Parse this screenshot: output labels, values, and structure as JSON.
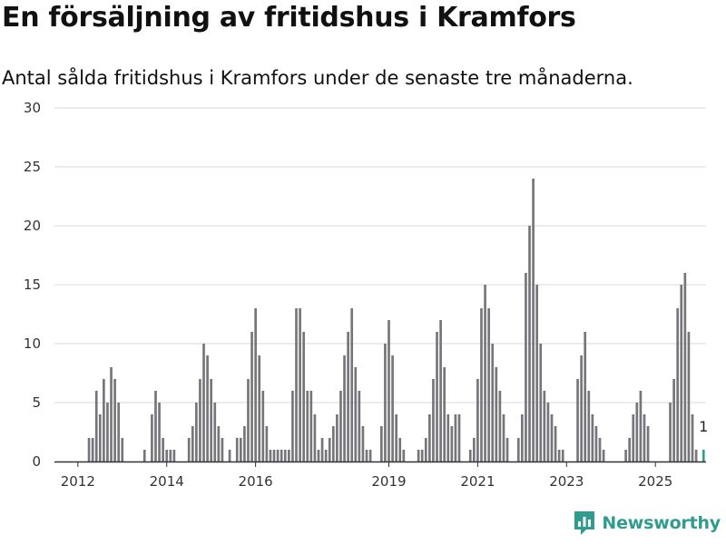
{
  "title": "En försäljning av fritidshus i Kramfors",
  "subtitle": "Antal sålda fritidshus i Kramfors under de senaste tre månaderna.",
  "brand": {
    "name": "Newsworthy",
    "logo_icon": "newsworthy-chart-icon"
  },
  "colors": {
    "bar": "#76767a",
    "highlight": "#2f9c8f",
    "grid": "#d9d9d9",
    "axis": "#333333"
  },
  "chart_data": {
    "type": "bar",
    "title": "",
    "xlabel": "",
    "ylabel": "",
    "ylim": [
      0,
      30
    ],
    "yticks": [
      0,
      5,
      10,
      15,
      20,
      25,
      30
    ],
    "xticks": [
      "2012",
      "2014",
      "2016",
      "2019",
      "2021",
      "2023",
      "2025"
    ],
    "grid": true,
    "start_month": "2011-07",
    "values": [
      0,
      0,
      0,
      0,
      0,
      0,
      0,
      0,
      0,
      2,
      2,
      6,
      4,
      7,
      5,
      8,
      7,
      5,
      2,
      0,
      0,
      0,
      0,
      0,
      1,
      0,
      4,
      6,
      5,
      2,
      1,
      1,
      1,
      0,
      0,
      0,
      2,
      3,
      5,
      7,
      10,
      9,
      7,
      5,
      3,
      2,
      0,
      1,
      0,
      2,
      2,
      3,
      7,
      11,
      13,
      9,
      6,
      3,
      1,
      1,
      1,
      1,
      1,
      1,
      6,
      13,
      13,
      11,
      6,
      6,
      4,
      1,
      2,
      1,
      2,
      3,
      4,
      6,
      9,
      11,
      13,
      8,
      6,
      3,
      1,
      1,
      0,
      0,
      3,
      10,
      12,
      9,
      4,
      2,
      1,
      0,
      0,
      0,
      1,
      1,
      2,
      4,
      7,
      11,
      12,
      8,
      4,
      3,
      4,
      4,
      0,
      0,
      1,
      2,
      7,
      13,
      15,
      13,
      10,
      8,
      6,
      4,
      2,
      0,
      0,
      2,
      4,
      16,
      20,
      24,
      15,
      10,
      6,
      5,
      4,
      3,
      1,
      1,
      0,
      0,
      0,
      7,
      9,
      11,
      6,
      4,
      3,
      2,
      1,
      0,
      0,
      0,
      0,
      0,
      1,
      2,
      4,
      5,
      6,
      4,
      3,
      0,
      0,
      0,
      0,
      0,
      5,
      7,
      13,
      15,
      16,
      11,
      4,
      1,
      0,
      1
    ],
    "highlight": {
      "label": "1",
      "value": 1
    }
  }
}
